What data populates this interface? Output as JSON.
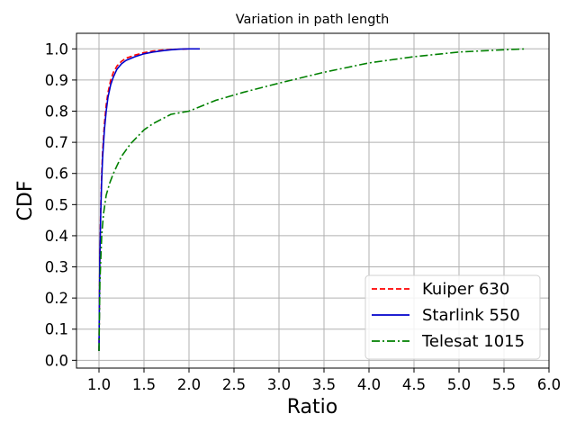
{
  "chart_data": {
    "type": "line",
    "title": "Variation in path length",
    "xlabel": "Ratio",
    "ylabel": "CDF",
    "xlim": [
      0.75,
      6.0
    ],
    "ylim": [
      -0.025,
      1.05
    ],
    "xticks": [
      "1.0",
      "1.5",
      "2.0",
      "2.5",
      "3.0",
      "3.5",
      "4.0",
      "4.5",
      "5.0",
      "5.5",
      "6.0"
    ],
    "yticks": [
      "0.0",
      "0.1",
      "0.2",
      "0.3",
      "0.4",
      "0.5",
      "0.6",
      "0.7",
      "0.8",
      "0.9",
      "1.0"
    ],
    "grid": true,
    "legend_position": "lower right",
    "series": [
      {
        "name": "Kuiper 630",
        "color": "#ff0000",
        "linestyle": "dashed",
        "x": [
          1.0,
          1.005,
          1.01,
          1.02,
          1.03,
          1.04,
          1.06,
          1.08,
          1.1,
          1.13,
          1.16,
          1.2,
          1.25,
          1.3,
          1.4,
          1.5,
          1.6,
          1.7,
          1.8,
          1.9,
          2.0
        ],
        "y": [
          0.03,
          0.2,
          0.35,
          0.5,
          0.6,
          0.67,
          0.76,
          0.82,
          0.86,
          0.9,
          0.925,
          0.945,
          0.96,
          0.97,
          0.98,
          0.988,
          0.993,
          0.996,
          0.998,
          0.999,
          1.0
        ]
      },
      {
        "name": "Starlink 550",
        "color": "#0000cc",
        "linestyle": "solid",
        "x": [
          1.0,
          1.005,
          1.01,
          1.02,
          1.03,
          1.04,
          1.06,
          1.08,
          1.1,
          1.13,
          1.16,
          1.2,
          1.25,
          1.3,
          1.4,
          1.5,
          1.6,
          1.7,
          1.8,
          1.9,
          2.0,
          2.12
        ],
        "y": [
          0.03,
          0.2,
          0.34,
          0.48,
          0.58,
          0.65,
          0.74,
          0.8,
          0.845,
          0.885,
          0.91,
          0.935,
          0.952,
          0.963,
          0.975,
          0.984,
          0.99,
          0.994,
          0.997,
          0.999,
          1.0,
          1.0
        ]
      },
      {
        "name": "Telesat 1015",
        "color": "#008000",
        "linestyle": "dashdot",
        "x": [
          1.0,
          1.01,
          1.03,
          1.05,
          1.08,
          1.12,
          1.16,
          1.2,
          1.25,
          1.3,
          1.35,
          1.4,
          1.5,
          1.6,
          1.7,
          1.8,
          2.0,
          2.3,
          2.6,
          3.0,
          3.5,
          4.0,
          4.5,
          5.0,
          5.5,
          5.75
        ],
        "y": [
          0.03,
          0.25,
          0.4,
          0.47,
          0.53,
          0.57,
          0.6,
          0.625,
          0.655,
          0.675,
          0.695,
          0.71,
          0.74,
          0.76,
          0.775,
          0.79,
          0.8,
          0.835,
          0.86,
          0.89,
          0.925,
          0.955,
          0.975,
          0.99,
          0.997,
          1.0
        ]
      }
    ]
  }
}
